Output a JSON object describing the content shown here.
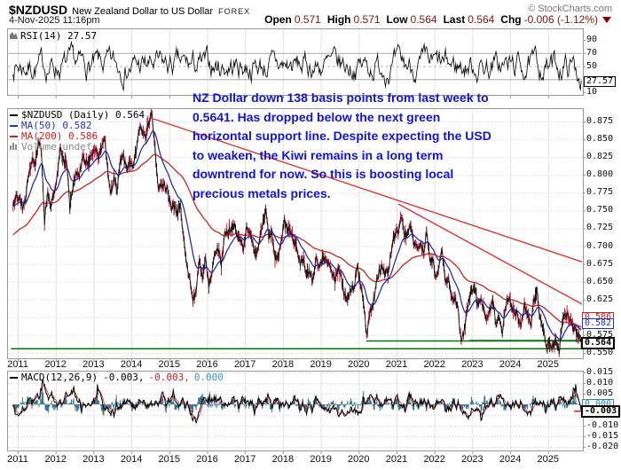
{
  "header": {
    "symbol": "$NZDUSD",
    "description": "New Zealand Dollar to US Dollar",
    "exchange": "FOREX",
    "copyright": "© StockCharts.com",
    "datetime": "4-Nov-2025 11:16pm",
    "quote": {
      "open_label": "Open",
      "open": "0.571",
      "high_label": "High",
      "high": "0.571",
      "low_label": "Low",
      "low": "0.564",
      "last_label": "Last",
      "last": "0.564",
      "chg_label": "Chg",
      "chg": "-0.006 (-1.12%)"
    }
  },
  "rsi_panel": {
    "legend": "RSI(14) 27.57",
    "last_box": "27.57"
  },
  "main_panel": {
    "legend": [
      {
        "text": "$NZDUSD (Daily) 0.564",
        "color": "#000000"
      },
      {
        "text": "MA(50) 0.582",
        "color": "#2233bb"
      },
      {
        "text": "MA(200) 0.586",
        "color": "#cc2222"
      },
      {
        "text": "Volume undef",
        "color": "#888888"
      }
    ],
    "boxes": {
      "ma200": "0.586",
      "ma50": "0.582",
      "last": "0.564"
    },
    "annotation_lines": [
      "NZ Dollar down 138 basis points from last week to",
      "0.5641. Has dropped below the next green",
      "horizontal support line. Despite expecting the USD",
      "to weaken, the Kiwi remains in a long term",
      "downtrend for now. So this is boosting local",
      "precious metals prices."
    ]
  },
  "macd_panel": {
    "legend_name": "MACD(12,26,9)",
    "legend_macd": "-0.003,",
    "legend_signal": "-0.003,",
    "legend_hist": "0.000",
    "boxes": {
      "hist": "0.000",
      "macd": "-0.003"
    }
  },
  "colors": {
    "quote_value": "#7d1515",
    "annotation_blue": "#1414d2",
    "price_bar_red": "#c21f3a",
    "price_line_black": "#111111",
    "ma50_blue": "#2233bb",
    "ma200_red": "#cc2222",
    "trendline_red": "#e43333",
    "support_green": "#007a00",
    "macd_hist_teal": "#35708a",
    "grid_light": "#e3e3e3",
    "panel_border": "#9a9a9a"
  },
  "chart_data": [
    {
      "panel": "rsi",
      "type": "line",
      "title": "RSI(14)",
      "last_value": 27.57,
      "ylim": [
        0,
        100
      ],
      "yticks": [
        90,
        70,
        50,
        10
      ],
      "guides": {
        "overbought": 70,
        "midline": 50,
        "oversold": 30
      },
      "behavior": "daily RSI oscillating roughly 15-85 across 2011-2025, ending at 27.57"
    },
    {
      "panel": "price",
      "type": "line",
      "title": "$NZDUSD (Daily)",
      "ylim": [
        0.5425,
        0.894
      ],
      "yticks": [
        0.875,
        0.85,
        0.825,
        0.8,
        0.775,
        0.75,
        0.725,
        0.7,
        0.675,
        0.65,
        0.625,
        0.6,
        0.575,
        0.55
      ],
      "x_ticks": [
        2011,
        2012,
        2013,
        2014,
        2015,
        2016,
        2017,
        2018,
        2019,
        2020,
        2021,
        2022,
        2023,
        2024,
        2025
      ],
      "series": [
        {
          "name": "$NZDUSD close",
          "start_year": 2010.8333,
          "step": "monthly",
          "last": 0.564,
          "values": [
            0.755,
            0.77,
            0.77,
            0.755,
            0.765,
            0.805,
            0.82,
            0.815,
            0.845,
            0.835,
            0.735,
            0.78,
            0.755,
            0.775,
            0.8,
            0.835,
            0.82,
            0.815,
            0.755,
            0.785,
            0.805,
            0.8,
            0.825,
            0.82,
            0.82,
            0.825,
            0.835,
            0.825,
            0.835,
            0.855,
            0.805,
            0.775,
            0.795,
            0.78,
            0.825,
            0.825,
            0.81,
            0.82,
            0.81,
            0.835,
            0.865,
            0.86,
            0.85,
            0.875,
            0.885,
            0.84,
            0.78,
            0.785,
            0.785,
            0.78,
            0.755,
            0.755,
            0.745,
            0.76,
            0.71,
            0.675,
            0.655,
            0.625,
            0.635,
            0.68,
            0.655,
            0.685,
            0.645,
            0.665,
            0.69,
            0.695,
            0.675,
            0.715,
            0.72,
            0.725,
            0.73,
            0.715,
            0.705,
            0.695,
            0.73,
            0.72,
            0.7,
            0.685,
            0.71,
            0.73,
            0.75,
            0.715,
            0.72,
            0.685,
            0.685,
            0.71,
            0.735,
            0.725,
            0.72,
            0.705,
            0.695,
            0.675,
            0.68,
            0.66,
            0.665,
            0.65,
            0.685,
            0.67,
            0.685,
            0.68,
            0.68,
            0.665,
            0.65,
            0.67,
            0.655,
            0.63,
            0.625,
            0.64,
            0.64,
            0.675,
            0.645,
            0.625,
            0.572,
            0.605,
            0.615,
            0.645,
            0.665,
            0.67,
            0.66,
            0.665,
            0.7,
            0.72,
            0.72,
            0.745,
            0.715,
            0.72,
            0.725,
            0.7,
            0.7,
            0.705,
            0.69,
            0.72,
            0.68,
            0.68,
            0.655,
            0.675,
            0.695,
            0.645,
            0.655,
            0.625,
            0.625,
            0.61,
            0.562,
            0.583,
            0.615,
            0.635,
            0.645,
            0.62,
            0.625,
            0.615,
            0.6,
            0.61,
            0.62,
            0.59,
            0.6,
            0.58,
            0.615,
            0.63,
            0.61,
            0.61,
            0.6,
            0.59,
            0.615,
            0.61,
            0.59,
            0.625,
            0.635,
            0.595,
            0.588,
            0.56,
            0.565,
            0.558,
            0.572,
            0.552,
            0.595,
            0.603,
            0.6,
            0.59,
            0.582,
            0.576,
            0.564
          ]
        },
        {
          "name": "MA(50)",
          "last": 0.582
        },
        {
          "name": "MA(200)",
          "last": 0.586
        }
      ],
      "support_lines": [
        {
          "level": 0.5675,
          "from_year": 2020.2,
          "to_year": 2025.95
        },
        {
          "level": 0.568,
          "from_year": 2022.92,
          "to_year": 2025.95
        },
        {
          "level": 0.5565,
          "from_year": 2010.82,
          "to_year": 2025.95
        }
      ],
      "trend_lines": [
        {
          "from": [
            2014.51,
            0.88
          ],
          "to": [
            2025.95,
            0.677
          ]
        },
        {
          "from": [
            2021.05,
            0.759
          ],
          "to": [
            2025.95,
            0.617
          ]
        }
      ]
    },
    {
      "panel": "macd",
      "type": "line",
      "title": "MACD(12,26,9)",
      "last_values": {
        "macd": -0.003,
        "signal": -0.003,
        "hist": 0.0
      },
      "ylim": [
        -0.0217,
        0.0158
      ],
      "yticks": [
        0.015,
        0.01,
        0.005,
        -0.01,
        -0.015,
        -0.02
      ],
      "behavior": "MACD and signal oscillate ±0.015 around zero; histogram hugs zero, ending at 0.000"
    }
  ]
}
